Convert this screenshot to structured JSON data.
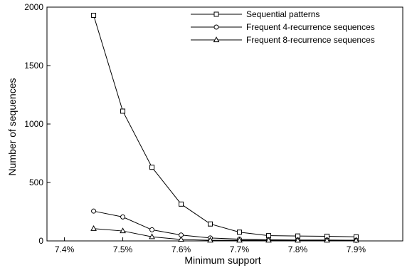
{
  "chart_data": {
    "type": "line",
    "title": "",
    "xlabel": "Minimum support",
    "ylabel": "Number of sequences",
    "xlim": [
      7.37,
      7.98
    ],
    "ylim": [
      0,
      2000
    ],
    "x_ticks": [
      7.4,
      7.5,
      7.6,
      7.7,
      7.8,
      7.9
    ],
    "x_tick_labels": [
      "7.4%",
      "7.5%",
      "7.6%",
      "7.7%",
      "7.8%",
      "7.9%"
    ],
    "y_ticks": [
      0,
      500,
      1000,
      1500,
      2000
    ],
    "y_tick_labels": [
      "0",
      "500",
      "1000",
      "1500",
      "2000"
    ],
    "grid": false,
    "legend_position": "top-right",
    "x": [
      7.45,
      7.5,
      7.55,
      7.6,
      7.65,
      7.7,
      7.75,
      7.8,
      7.85,
      7.9
    ],
    "series": [
      {
        "name": "Sequential patterns",
        "marker": "square",
        "values": [
          1930,
          1110,
          630,
          315,
          145,
          75,
          45,
          42,
          40,
          35
        ]
      },
      {
        "name": "Frequent 4-recurrence sequences",
        "marker": "circle",
        "values": [
          255,
          205,
          95,
          50,
          25,
          15,
          10,
          8,
          8,
          5
        ]
      },
      {
        "name": "Frequent 8-recurrence sequences",
        "marker": "triangle",
        "values": [
          105,
          85,
          35,
          12,
          5,
          5,
          5,
          5,
          5,
          5
        ]
      }
    ]
  }
}
